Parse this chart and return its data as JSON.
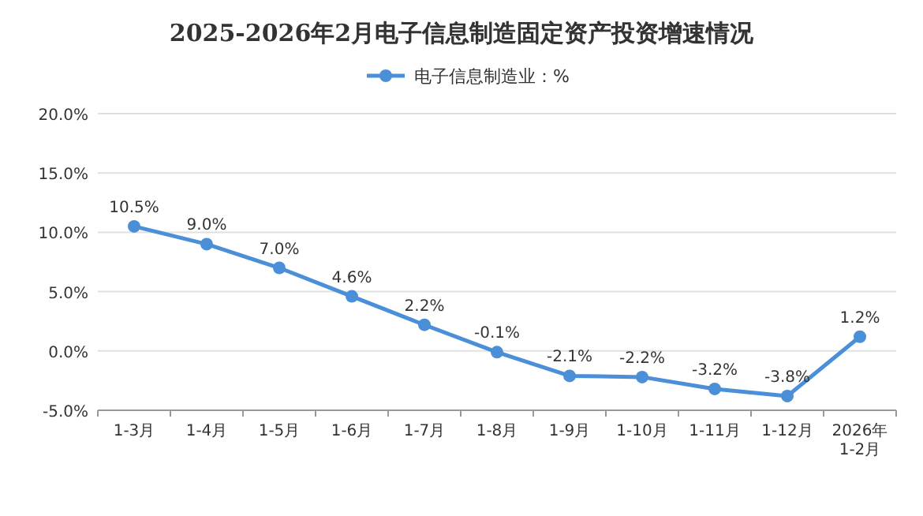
{
  "chart_data": {
    "type": "line",
    "title": "2025-2026年2月电子信息制造固定资产投资增速情况",
    "categories": [
      "1-3月",
      "1-4月",
      "1-5月",
      "1-6月",
      "1-7月",
      "1-8月",
      "1-9月",
      "1-10月",
      "1-11月",
      "1-12月",
      "2026年 1-2月"
    ],
    "series": [
      {
        "name": "电子信息制造业：%",
        "color": "#4a8fd8",
        "values": [
          10.5,
          9.0,
          7.0,
          4.6,
          2.2,
          -0.1,
          -2.1,
          -2.2,
          -3.2,
          -3.8,
          1.2
        ],
        "value_labels": [
          "10.5%",
          "9.0%",
          "7.0%",
          "4.6%",
          "2.2%",
          "-0.1%",
          "-2.1%",
          "-2.2%",
          "-3.2%",
          "-3.8%",
          "1.2%"
        ]
      }
    ],
    "ylim": [
      -5,
      20
    ],
    "yticks": [
      {
        "value": -5,
        "label": "-5.0%"
      },
      {
        "value": 0,
        "label": "0.0%"
      },
      {
        "value": 5,
        "label": "5.0%"
      },
      {
        "value": 10,
        "label": "10.0%"
      },
      {
        "value": 15,
        "label": "15.0%"
      },
      {
        "value": 20,
        "label": "20.0%"
      }
    ],
    "grid": "y",
    "legend": "top",
    "marker": "circle",
    "line_style": "solid"
  }
}
